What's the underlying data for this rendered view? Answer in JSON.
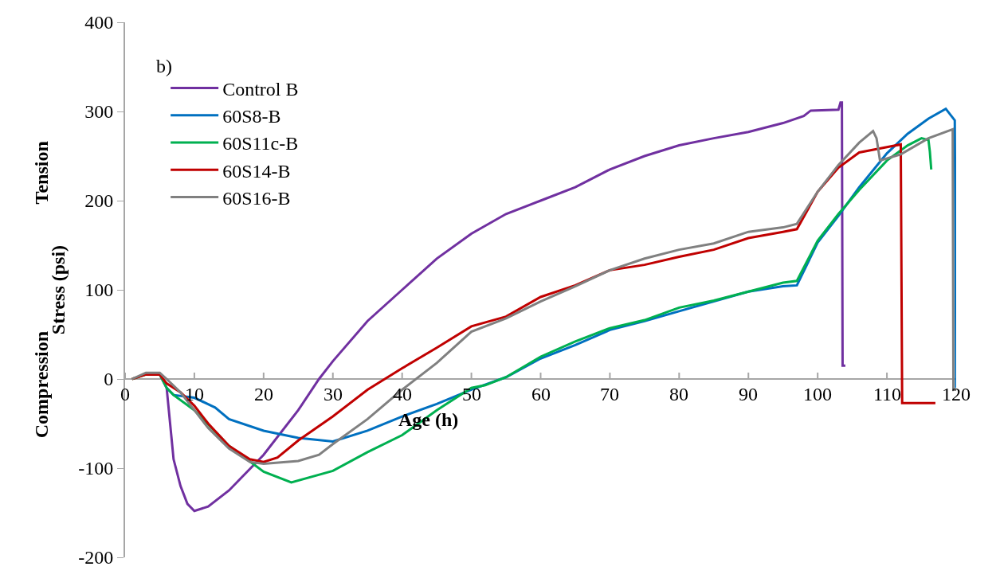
{
  "chart_data": {
    "type": "line",
    "xlabel": "Age (h)",
    "ylabel": "Stress (psi)",
    "annotations": [
      "b)",
      "Tension",
      "Compression"
    ],
    "xlim": [
      0,
      120
    ],
    "xticks": [
      0,
      10,
      20,
      30,
      40,
      50,
      60,
      70,
      80,
      90,
      100,
      110,
      120
    ],
    "ylim": [
      -200,
      400
    ],
    "yticks": [
      -200,
      -100,
      0,
      100,
      200,
      300,
      400
    ],
    "grid": false,
    "legend": "top left",
    "marker": "none",
    "line_style": "solid",
    "series": [
      {
        "name": "Control B",
        "color": "#7030a0",
        "x": [
          5,
          6,
          6.5,
          7,
          8,
          9,
          10,
          12,
          15,
          20,
          25,
          28,
          30,
          35,
          40,
          45,
          50,
          55,
          60,
          65,
          70,
          75,
          80,
          85,
          90,
          95,
          98,
          99,
          103,
          103.3,
          103.5,
          103.6,
          104
        ],
        "values": [
          5,
          -10,
          -50,
          -90,
          -120,
          -140,
          -148,
          -143,
          -125,
          -85,
          -35,
          0,
          20,
          65,
          100,
          135,
          163,
          185,
          200,
          215,
          235,
          250,
          262,
          270,
          277,
          287,
          295,
          301,
          302,
          310,
          310,
          15,
          15
        ]
      },
      {
        "name": "60S8-B",
        "color": "#0070c0",
        "x": [
          6,
          7,
          10,
          13,
          15,
          20,
          25,
          30,
          35,
          40,
          45,
          50,
          55,
          60,
          65,
          70,
          75,
          80,
          85,
          90,
          95,
          97,
          100,
          103,
          106,
          110,
          113,
          116,
          118.5,
          119.8,
          120
        ],
        "values": [
          -10,
          -18,
          -21,
          -32,
          -45,
          -58,
          -66,
          -70,
          -58,
          -42,
          -28,
          -12,
          2,
          23,
          38,
          55,
          65,
          76,
          87,
          98,
          104,
          105,
          153,
          183,
          215,
          253,
          275,
          292,
          303,
          290,
          -10
        ]
      },
      {
        "name": "60S11c-B",
        "color": "#00b050",
        "x": [
          1,
          3,
          5,
          6,
          7,
          10,
          15,
          20,
          24,
          30,
          35,
          40,
          45,
          50,
          52,
          55,
          60,
          65,
          70,
          75,
          80,
          85,
          90,
          95,
          97,
          100,
          103,
          106,
          110,
          113,
          115,
          116,
          116.2,
          116.4
        ],
        "values": [
          0,
          5,
          5,
          -10,
          -18,
          -35,
          -75,
          -104,
          -116,
          -103,
          -82,
          -63,
          -35,
          -10,
          -7,
          2,
          25,
          42,
          57,
          66,
          80,
          88,
          98,
          108,
          110,
          155,
          185,
          212,
          245,
          262,
          270,
          268,
          255,
          235
        ]
      },
      {
        "name": "60S14-B",
        "color": "#c00000",
        "x": [
          1,
          3,
          5,
          6,
          8,
          10,
          12,
          15,
          18,
          20,
          22,
          25,
          30,
          35,
          40,
          45,
          50,
          55,
          60,
          65,
          70,
          75,
          80,
          85,
          90,
          95,
          97,
          100,
          103,
          106,
          110,
          112,
          112.2,
          117
        ],
        "values": [
          0,
          5,
          5,
          -5,
          -15,
          -30,
          -50,
          -75,
          -90,
          -93,
          -88,
          -69,
          -42,
          -12,
          12,
          35,
          59,
          70,
          92,
          105,
          122,
          128,
          137,
          145,
          158,
          165,
          168,
          210,
          237,
          254,
          260,
          263,
          -27,
          -27
        ]
      },
      {
        "name": "60S16-B",
        "color": "#808080",
        "x": [
          1,
          3,
          5,
          6,
          8,
          10,
          12,
          15,
          18,
          20,
          25,
          28,
          30,
          35,
          40,
          45,
          50,
          55,
          60,
          65,
          70,
          75,
          80,
          85,
          90,
          95,
          97,
          100,
          103,
          106,
          108,
          108.5,
          109,
          112,
          116,
          119.5,
          119.6,
          120
        ],
        "values": [
          0,
          7,
          7,
          0,
          -15,
          -35,
          -55,
          -78,
          -93,
          -95,
          -92,
          -85,
          -73,
          -45,
          -12,
          18,
          53,
          68,
          87,
          104,
          122,
          135,
          145,
          152,
          165,
          170,
          174,
          210,
          240,
          265,
          278,
          270,
          245,
          252,
          270,
          280,
          -12,
          -12
        ]
      }
    ]
  }
}
